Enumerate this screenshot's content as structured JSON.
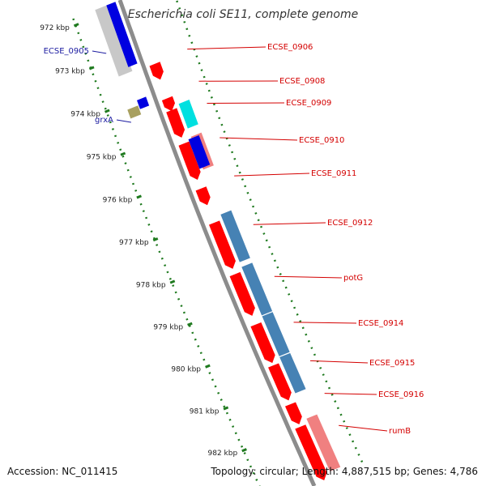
{
  "title": "Escherichia coli SE11, complete genome",
  "footer": {
    "accession": "Accession: NC_011415",
    "summary": "Topology: circular; Length: 4,887,515 bp; Genes: 4,786"
  },
  "kbp_ticks": [
    "972 kbp",
    "973 kbp",
    "974 kbp",
    "975 kbp",
    "976 kbp",
    "977 kbp",
    "978 kbp",
    "979 kbp",
    "980 kbp",
    "981 kbp",
    "982 kbp"
  ],
  "colors": {
    "tick": "#1f7a1f",
    "backbone": "#8c8c8c",
    "forward_label": "#d40000",
    "reverse_label": "#1a1aa0",
    "gene_red": "#ff0000",
    "gene_pink": "#f08080",
    "gene_cyan": "#00e0e0",
    "gene_steelblue": "#4682b4",
    "gene_blue": "#0000e0",
    "gene_olive": "#a8a060",
    "gene_grey": "#c8c8c8"
  },
  "gene_labels": [
    {
      "name": "ECSE_0905",
      "strand": "reverse"
    },
    {
      "name": "grxA",
      "strand": "reverse"
    },
    {
      "name": "ECSE_0906",
      "strand": "forward"
    },
    {
      "name": "ECSE_0908",
      "strand": "forward"
    },
    {
      "name": "ECSE_0909",
      "strand": "forward"
    },
    {
      "name": "ECSE_0910",
      "strand": "forward"
    },
    {
      "name": "ECSE_0911",
      "strand": "forward"
    },
    {
      "name": "ECSE_0912",
      "strand": "forward"
    },
    {
      "name": "potG",
      "strand": "forward"
    },
    {
      "name": "ECSE_0914",
      "strand": "forward"
    },
    {
      "name": "ECSE_0915",
      "strand": "forward"
    },
    {
      "name": "ECSE_0916",
      "strand": "forward"
    },
    {
      "name": "rumB",
      "strand": "forward"
    }
  ]
}
